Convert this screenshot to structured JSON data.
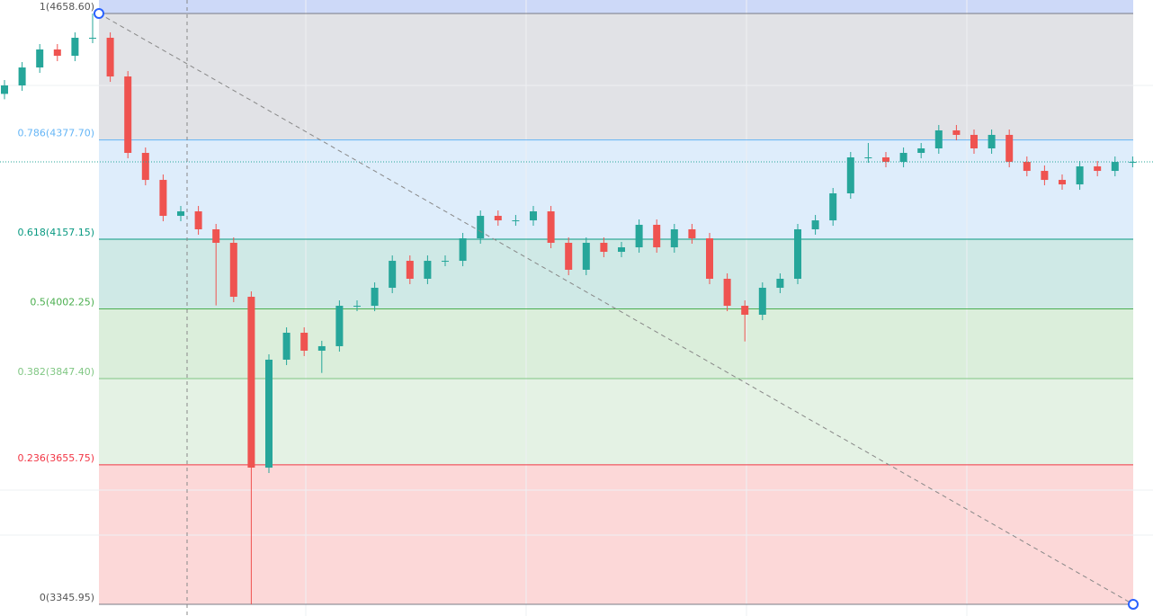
{
  "chart_data": {
    "type": "candlestick",
    "ylim": [
      3319.9,
      4688.6
    ],
    "up_color": "#26a69a",
    "down_color": "#ef5350",
    "open": [
      4480,
      4498.8,
      4538.7,
      4578.7,
      4564.7,
      4604.7,
      4604.7,
      4518.7,
      4348.9,
      4288.9,
      4209.0,
      4219.0,
      4179.1,
      4149.1,
      4029.2,
      3649.6,
      3889.4,
      3949.3,
      3909.4,
      3919.4,
      4009.2,
      4009.2,
      4049.2,
      4109.1,
      4069.2,
      4109.1,
      4109.1,
      4159.1,
      4209.0,
      4199.0,
      4199.0,
      4219.0,
      4149.1,
      4089.2,
      4149.1,
      4129.1,
      4139.1,
      4189.1,
      4139.1,
      4179.1,
      4159.1,
      4069.2,
      4009.2,
      3989.3,
      4049.2,
      4069.2,
      4179.1,
      4199.0,
      4259.0,
      4338.9,
      4338.9,
      4328.9,
      4348.9,
      4358.9,
      4398.9,
      4388.9,
      4358.9,
      4388.9,
      4328.9,
      4308.9,
      4288.9,
      4278.9,
      4318.9,
      4308.9,
      4328.9
    ],
    "high": [
      4510.8,
      4550.7,
      4590.7,
      4590.7,
      4616.7,
      4658.6,
      4616.7,
      4530.7,
      4360.9,
      4300.9,
      4231.0,
      4231.0,
      4191.1,
      4161.1,
      4041.2,
      3901.4,
      3961.3,
      3961.3,
      3931.4,
      4021.2,
      4021.2,
      4061.2,
      4121.1,
      4121.1,
      4121.1,
      4121.1,
      4171.1,
      4221.0,
      4221.0,
      4211.0,
      4231.0,
      4231.0,
      4161.1,
      4161.1,
      4161.1,
      4151.1,
      4201.1,
      4201.1,
      4191.1,
      4191.1,
      4171.1,
      4081.2,
      4021.2,
      4061.2,
      4081.2,
      4191.1,
      4211.0,
      4271.0,
      4350.9,
      4370.9,
      4350.9,
      4360.9,
      4370.9,
      4410.9,
      4410.9,
      4400.9,
      4400.9,
      4400.9,
      4340.9,
      4320.9,
      4300.9,
      4330.9,
      4330.9,
      4340.9,
      4340.9
    ],
    "low": [
      4468,
      4486.8,
      4526.7,
      4552.7,
      4552.7,
      4592.7,
      4506.7,
      4336.9,
      4276.9,
      4197.0,
      4197.0,
      4167.1,
      4010,
      4017.2,
      3345.95,
      3637.6,
      3877.4,
      3897.4,
      3860,
      3907.4,
      3997.2,
      3997.2,
      4037.2,
      4057.2,
      4057.2,
      4097.1,
      4097.1,
      4147.1,
      4187.0,
      4187.0,
      4187.0,
      4137.1,
      4077.2,
      4077.2,
      4117.1,
      4117.1,
      4127.1,
      4127.1,
      4127.1,
      4147.1,
      4057.2,
      3997.2,
      3930,
      3977.3,
      4037.2,
      4057.2,
      4167.1,
      4187.0,
      4247.0,
      4326.9,
      4316.9,
      4316.9,
      4336.9,
      4346.9,
      4376.9,
      4346.9,
      4346.9,
      4316.9,
      4296.9,
      4276.9,
      4266.9,
      4266.9,
      4296.9,
      4296.9,
      4316.9
    ],
    "close": [
      4498.8,
      4538.7,
      4578.7,
      4564.7,
      4604.7,
      4604.7,
      4518.7,
      4348.9,
      4288.9,
      4209.0,
      4219.0,
      4179.1,
      4149.1,
      4029.2,
      3649.6,
      3889.4,
      3949.3,
      3909.4,
      3919.4,
      4009.2,
      4009.2,
      4049.2,
      4109.1,
      4069.2,
      4109.1,
      4109.1,
      4159.1,
      4209.0,
      4199.0,
      4199.0,
      4219.0,
      4149.1,
      4089.2,
      4149.1,
      4129.1,
      4139.1,
      4189.1,
      4139.1,
      4179.1,
      4159.1,
      4069.2,
      4009.2,
      3989.3,
      4049.2,
      4069.2,
      4179.1,
      4199.0,
      4259.0,
      4338.9,
      4338.9,
      4328.9,
      4348.9,
      4358.9,
      4398.9,
      4388.9,
      4358.9,
      4388.9,
      4328.9,
      4308.9,
      4288.9,
      4278.9,
      4318.9,
      4308.9,
      4328.9,
      4328.9
    ],
    "fib_levels": [
      {
        "value": 4658.6,
        "label": "1(4658.60)",
        "color": "#787b86",
        "fill": "#e1e2e6"
      },
      {
        "value": 4377.7,
        "label": "0.786(4377.70)",
        "color": "#64b5f6",
        "fill": "#deedfb"
      },
      {
        "value": 4157.15,
        "label": "0.618(4157.15)",
        "color": "#089981",
        "fill": "#cfe9e6"
      },
      {
        "value": 4002.25,
        "label": "0.5(4002.25)",
        "color": "#4caf50",
        "fill": "#dbeedb"
      },
      {
        "value": 3847.4,
        "label": "0.382(3847.40)",
        "color": "#81c784",
        "fill": "#e4f2e4"
      },
      {
        "value": 3655.75,
        "label": "0.236(3655.75)",
        "color": "#f23645",
        "fill": "#fcd8d8"
      },
      {
        "value": 3345.95,
        "label": "0(3345.95)",
        "color": "#787b86"
      }
    ]
  }
}
